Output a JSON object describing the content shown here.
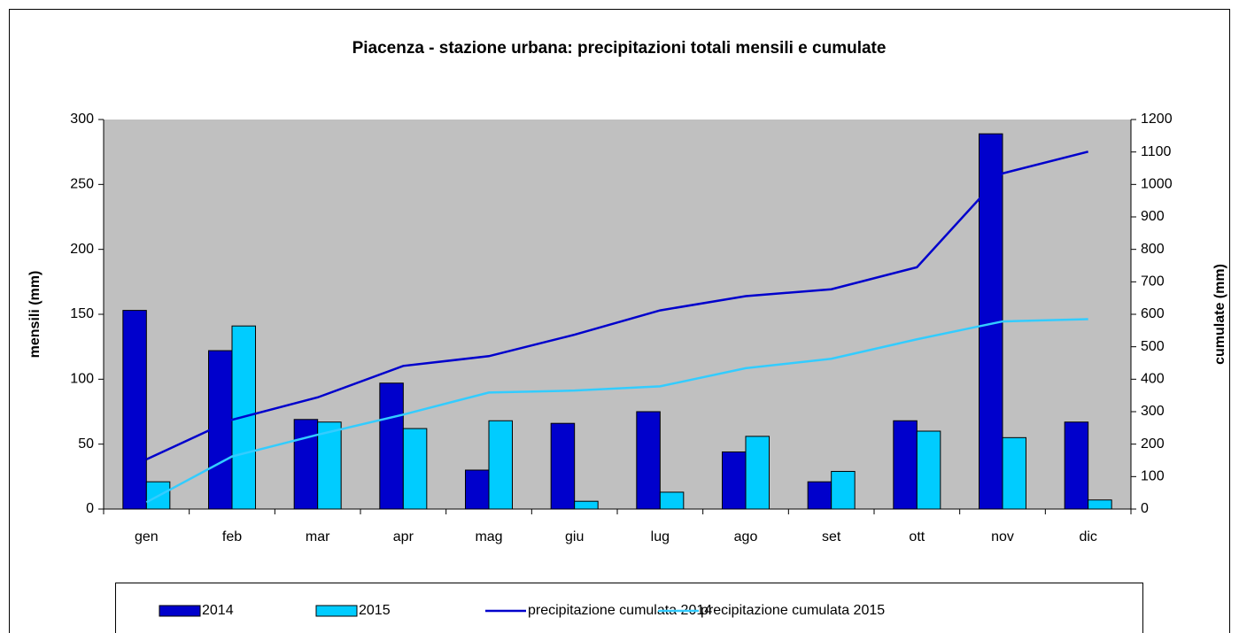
{
  "chart_data": {
    "type": "bar",
    "title": "Piacenza - stazione urbana:  precipitazioni totali mensili e cumulate",
    "y_label": "mensili (mm)",
    "y2_label": "cumulate (mm)",
    "categories": [
      "gen",
      "feb",
      "mar",
      "apr",
      "mag",
      "giu",
      "lug",
      "ago",
      "set",
      "ott",
      "nov",
      "dic"
    ],
    "series": [
      {
        "name": "2014",
        "type": "bar",
        "color": "#0000cc",
        "values": [
          153,
          122,
          69,
          97,
          30,
          66,
          75,
          44,
          21,
          68,
          289,
          67
        ]
      },
      {
        "name": "2015",
        "type": "bar",
        "color": "#00ccff",
        "values": [
          21,
          141,
          67,
          62,
          68,
          6,
          13,
          56,
          29,
          60,
          55,
          7
        ]
      },
      {
        "name": "precipitazione cumulata 2014",
        "type": "line",
        "axis": "y2",
        "color": "#0000cc",
        "values": [
          153,
          275,
          344,
          441,
          471,
          537,
          612,
          656,
          677,
          745,
          1034,
          1101
        ]
      },
      {
        "name": "precipitazione cumulata 2015",
        "type": "line",
        "axis": "y2",
        "color": "#33ccff",
        "values": [
          21,
          162,
          229,
          291,
          359,
          365,
          378,
          434,
          463,
          523,
          578,
          585
        ]
      }
    ],
    "ylim": [
      0,
      300
    ],
    "yticks": [
      0,
      50,
      100,
      150,
      200,
      250,
      300
    ],
    "y2lim": [
      0,
      1200
    ],
    "y2ticks": [
      0,
      100,
      200,
      300,
      400,
      500,
      600,
      700,
      800,
      900,
      1000,
      1100,
      1200
    ],
    "legend": "bottom"
  }
}
